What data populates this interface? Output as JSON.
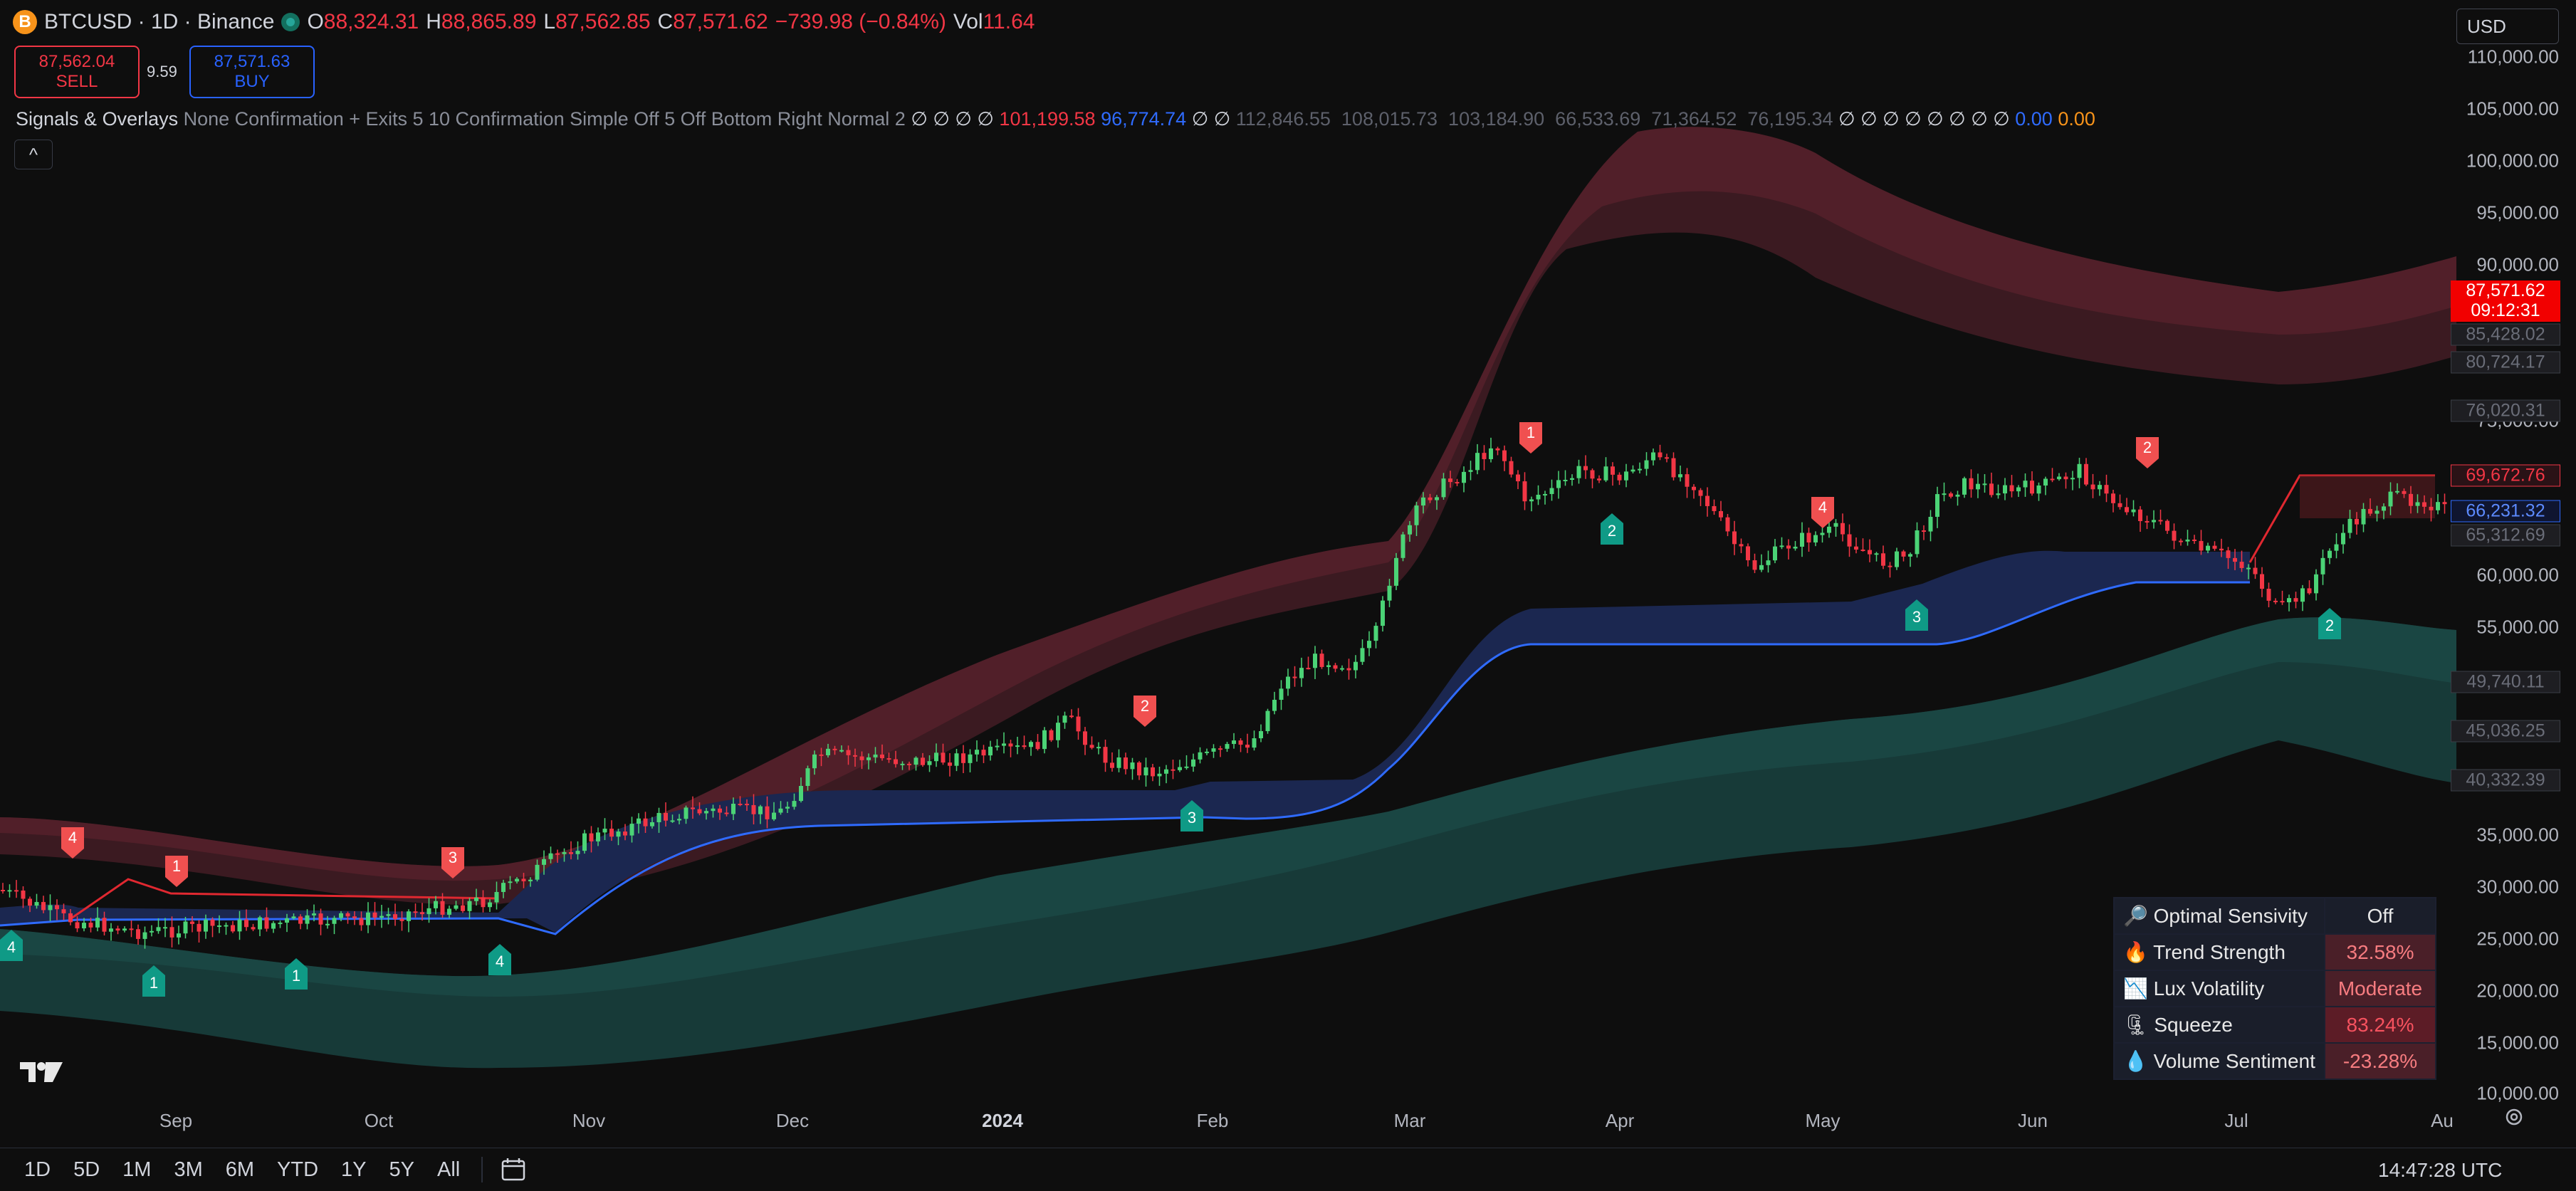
{
  "header": {
    "symbol": "BTCUSD · 1D · Binance",
    "logo_letter": "B",
    "open_label": "O",
    "open": "88,324.31",
    "high_label": "H",
    "high": "88,865.89",
    "low_label": "L",
    "low": "87,562.85",
    "close_label": "C",
    "close": "87,571.62",
    "change": "−739.98 (−0.84%)",
    "vol_label": "Vol",
    "vol": "11.64"
  },
  "trade": {
    "sell_price": "87,562.04",
    "sell_label": "SELL",
    "spread": "9.59",
    "buy_price": "87,571.63",
    "buy_label": "BUY"
  },
  "indicator": {
    "name": "Signals & Overlays",
    "params": "None Confirmation + Exits 5 10 Confirmation Simple Off 5 Off Bottom Right Normal 2",
    "nulls1": "∅ ∅ ∅ ∅",
    "v_red": "101,199.58",
    "v_blue": "96,774.74",
    "nulls2": "∅ ∅",
    "grey_vals": "112,846.55  108,015.73  103,184.90  66,533.69  71,364.52  76,195.34",
    "nulls3": "∅ ∅ ∅ ∅ ∅ ∅ ∅ ∅",
    "v_blue2": "0.00",
    "v_orange": "0.00",
    "collapse": "^"
  },
  "currency": "USD",
  "y_axis": [
    "110,000.00",
    "105,000.00",
    "100,000.00",
    "95,000.00",
    "90,000.00",
    "75,000.00",
    "60,000.00",
    "55,000.00",
    "35,000.00",
    "30,000.00",
    "25,000.00",
    "20,000.00",
    "15,000.00",
    "10,000.00"
  ],
  "price_tags": {
    "last_price": "87,571.62",
    "countdown": "09:12:31",
    "t1": "85,428.02",
    "t2": "80,724.17",
    "t3": "76,020.31",
    "t4": "69,672.76",
    "t5": "66,231.32",
    "t6": "65,312.69",
    "t7": "49,740.11",
    "t8": "45,036.25",
    "t9": "40,332.39"
  },
  "x_axis": [
    "Sep",
    "Oct",
    "Nov",
    "Dec",
    "2024",
    "Feb",
    "Mar",
    "Apr",
    "May",
    "Jun",
    "Jul",
    "Au"
  ],
  "signals": {
    "sell": [
      "4",
      "1",
      "3",
      "2",
      "1",
      "4",
      "2"
    ],
    "buy": [
      "4",
      "1",
      "1",
      "4",
      "3",
      "2",
      "3",
      "2"
    ]
  },
  "dashboard": [
    {
      "icon": "🔎",
      "label": "Optimal Sensivity",
      "value": "Off",
      "bg": "#1a1e2a",
      "color": "#e8e8e8"
    },
    {
      "icon": "🔥",
      "label": "Trend Strength",
      "value": "32.58%",
      "bg": "#4a1f28",
      "color": "#f77c80"
    },
    {
      "icon": "📉",
      "label": "Lux Volatility",
      "value": "Moderate",
      "bg": "#4a1f28",
      "color": "#f77c80"
    },
    {
      "icon": "🗜",
      "label": "Squeeze",
      "value": "83.24%",
      "bg": "#5c1c26",
      "color": "#f7525f"
    },
    {
      "icon": "💧",
      "label": "Volume Sentiment",
      "value": "-23.28%",
      "bg": "#4a1f28",
      "color": "#f77c80"
    }
  ],
  "timeframes": [
    "1D",
    "5D",
    "1M",
    "3M",
    "6M",
    "YTD",
    "1Y",
    "5Y",
    "All"
  ],
  "clock": "14:47:28 UTC",
  "colors": {
    "bull": "#4bd376",
    "bear": "#f23645",
    "buy_signal": "#0f9a86",
    "sell_signal": "#f05050",
    "blue_band": "#1d2a52"
  }
}
